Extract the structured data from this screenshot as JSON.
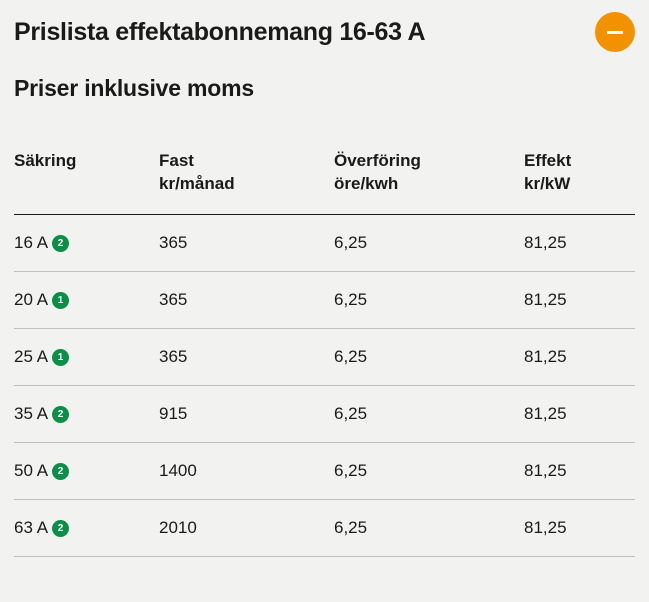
{
  "title": "Prislista effektabonnemang 16-63 A",
  "subtitle": "Priser inklusive moms",
  "collapse_button": {
    "icon": "minus",
    "color": "#f39200"
  },
  "table": {
    "columns": [
      {
        "l1": "Säkring",
        "l2": ""
      },
      {
        "l1": "Fast",
        "l2": "kr/månad"
      },
      {
        "l1": "Överföring",
        "l2": "öre/kwh"
      },
      {
        "l1": "Effekt",
        "l2": "kr/kW"
      }
    ],
    "rows": [
      {
        "sakring": "16 A",
        "badge": "2",
        "fast": "365",
        "over": "6,25",
        "effekt": "81,25"
      },
      {
        "sakring": "20 A",
        "badge": "1",
        "fast": "365",
        "over": "6,25",
        "effekt": "81,25"
      },
      {
        "sakring": "25 A",
        "badge": "1",
        "fast": "365",
        "over": "6,25",
        "effekt": "81,25"
      },
      {
        "sakring": "35 A",
        "badge": "2",
        "fast": "915",
        "over": "6,25",
        "effekt": "81,25"
      },
      {
        "sakring": "50 A",
        "badge": "2",
        "fast": "1400",
        "over": "6,25",
        "effekt": "81,25"
      },
      {
        "sakring": "63 A",
        "badge": "2",
        "fast": "2010",
        "over": "6,25",
        "effekt": "81,25"
      }
    ],
    "badge_color": "#0a8f47"
  }
}
